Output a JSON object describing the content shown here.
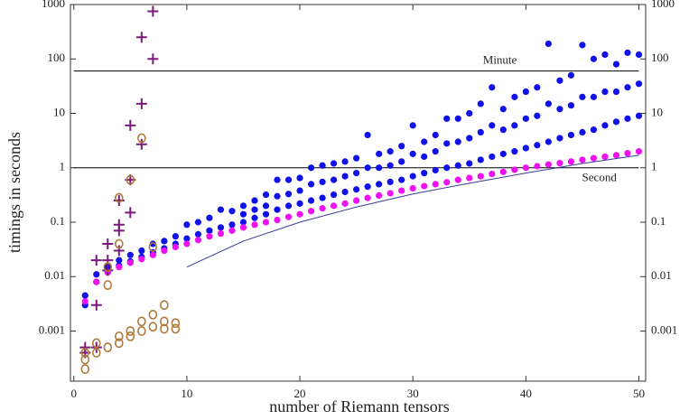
{
  "chart_data": {
    "type": "scatter",
    "x_label": "number of Riemann tensors",
    "y_label": "timings in seconds",
    "log_y": true,
    "xlim": [
      -0.3,
      50.6
    ],
    "ylim": [
      0.00012,
      1000
    ],
    "xticks": [
      0,
      10,
      20,
      30,
      40,
      50
    ],
    "yticks": [
      1000,
      100,
      10,
      1,
      0.1,
      0.01,
      0.001
    ],
    "hlines": [
      {
        "value": 60,
        "label": "Minute"
      },
      {
        "value": 1,
        "label": "Second"
      }
    ],
    "series": [
      {
        "color": "#1010e8",
        "marker": "dot",
        "x": [
          1,
          2,
          3,
          4,
          5,
          6,
          7,
          8,
          9,
          10,
          11,
          12,
          13,
          14,
          15,
          16,
          17,
          18,
          19,
          20,
          21,
          22,
          23,
          24,
          25,
          26,
          27,
          28,
          29,
          30,
          31,
          32,
          33,
          34,
          35,
          36,
          37,
          38,
          39,
          40,
          41,
          42,
          43,
          44,
          45,
          46,
          47,
          48,
          49,
          50
        ],
        "values": [
          0.003,
          0.008,
          0.012,
          0.016,
          0.019,
          0.023,
          0.028,
          0.033,
          0.04,
          0.05,
          0.06,
          0.07,
          0.08,
          0.09,
          0.1,
          0.12,
          0.14,
          0.17,
          0.2,
          0.22,
          0.25,
          0.28,
          0.32,
          0.36,
          0.4,
          0.45,
          0.5,
          0.55,
          0.6,
          0.7,
          0.8,
          0.9,
          1.0,
          1.1,
          1.2,
          1.4,
          1.6,
          1.8,
          2.0,
          2.3,
          2.6,
          3,
          3.5,
          4,
          4.5,
          5,
          6,
          7,
          8,
          9
        ]
      },
      {
        "color": "#1010e8",
        "marker": "dot",
        "x": [
          1,
          2,
          3,
          4,
          5,
          6,
          7,
          8,
          9,
          10,
          11,
          12,
          13,
          14,
          15,
          16,
          17,
          18,
          19,
          20,
          21,
          22,
          23,
          24,
          25,
          26,
          27,
          28,
          29,
          30,
          31,
          32,
          33,
          34,
          35,
          36,
          37,
          38,
          39,
          40,
          41,
          42,
          43,
          44,
          45,
          46,
          47,
          48,
          49,
          50
        ],
        "values": [
          0.0045,
          0.011,
          0.015,
          0.02,
          0.025,
          0.03,
          0.04,
          0.045,
          0.055,
          0.09,
          0.1,
          0.12,
          0.17,
          0.16,
          0.2,
          0.25,
          0.32,
          0.6,
          0.6,
          0.65,
          1.0,
          1.1,
          1.2,
          1.3,
          1.5,
          4.0,
          1.8,
          2.0,
          2.5,
          6,
          3,
          4,
          8,
          8,
          10,
          15,
          30,
          12,
          20,
          25,
          30,
          190,
          40,
          50,
          180,
          100,
          120,
          80,
          130,
          120
        ]
      },
      {
        "color": "#1010e8",
        "marker": "dot",
        "x": [
          15,
          16,
          17,
          18,
          19,
          20,
          21,
          22,
          23,
          24,
          25,
          26,
          27,
          28,
          29,
          30,
          31,
          32,
          33,
          34,
          35,
          36,
          37,
          38,
          39,
          40,
          41,
          42,
          43,
          44,
          45,
          46,
          47,
          48,
          49,
          50
        ],
        "values": [
          0.14,
          0.17,
          0.2,
          0.3,
          0.33,
          0.38,
          0.5,
          0.55,
          0.6,
          0.7,
          0.8,
          1.0,
          1.0,
          1.1,
          1.3,
          1.8,
          1.6,
          2,
          2.8,
          3,
          3.5,
          4.5,
          6,
          5,
          6,
          8,
          9,
          15,
          12,
          14,
          20,
          20,
          25,
          25,
          30,
          35
        ]
      },
      {
        "color": "#ee10ee",
        "marker": "dot",
        "x": [
          1,
          2,
          3,
          4,
          5,
          6,
          7,
          8,
          9,
          10,
          11,
          12,
          13,
          14,
          15,
          16,
          17,
          18,
          19,
          20,
          21,
          22,
          23,
          24,
          25,
          26,
          27,
          28,
          29,
          30,
          31,
          32,
          33,
          34,
          35,
          36,
          37,
          38,
          39,
          40,
          41,
          42,
          43,
          44,
          45,
          46,
          47,
          48,
          49,
          50
        ],
        "values": [
          0.0035,
          0.008,
          0.012,
          0.015,
          0.018,
          0.021,
          0.025,
          0.03,
          0.035,
          0.04,
          0.047,
          0.055,
          0.062,
          0.07,
          0.08,
          0.09,
          0.1,
          0.11,
          0.125,
          0.14,
          0.16,
          0.18,
          0.2,
          0.22,
          0.25,
          0.28,
          0.31,
          0.34,
          0.38,
          0.42,
          0.46,
          0.5,
          0.54,
          0.6,
          0.65,
          0.7,
          0.77,
          0.84,
          0.92,
          1.0,
          1.07,
          1.15,
          1.22,
          1.3,
          1.4,
          1.5,
          1.6,
          1.7,
          1.85,
          2.0
        ]
      },
      {
        "color": "#7a1a7a",
        "marker": "plus",
        "x": [
          1,
          1,
          2,
          2,
          2,
          3,
          3,
          3,
          4,
          4,
          4,
          4,
          5,
          5,
          5,
          6,
          6,
          6,
          7,
          7
        ],
        "values": [
          0.0005,
          0.0004,
          0.02,
          0.003,
          0.0005,
          0.04,
          0.02,
          0.013,
          0.25,
          0.09,
          0.07,
          0.03,
          6,
          0.6,
          0.15,
          250,
          15,
          2.7,
          750,
          100
        ]
      },
      {
        "color": "#b07a3c",
        "marker": "circle",
        "x": [
          1,
          1,
          1,
          2,
          2,
          3,
          3,
          3,
          4,
          4,
          4,
          4,
          5,
          5,
          5,
          6,
          6,
          6,
          7,
          7,
          7,
          8,
          8,
          8,
          9,
          9
        ],
        "values": [
          0.0004,
          0.0003,
          0.0002,
          0.0006,
          0.0004,
          0.015,
          0.007,
          0.0005,
          0.28,
          0.04,
          0.0008,
          0.0006,
          0.6,
          0.001,
          0.0008,
          3.5,
          0.0015,
          0.001,
          0.035,
          0.002,
          0.0012,
          0.003,
          0.0015,
          0.0011,
          0.0014,
          0.0011
        ]
      },
      {
        "color": "#3a3a9a",
        "marker": "line",
        "x": [
          10,
          15,
          20,
          25,
          30,
          35,
          40,
          45,
          50
        ],
        "values": [
          0.015,
          0.045,
          0.1,
          0.19,
          0.33,
          0.52,
          0.8,
          1.2,
          1.7
        ]
      }
    ]
  }
}
